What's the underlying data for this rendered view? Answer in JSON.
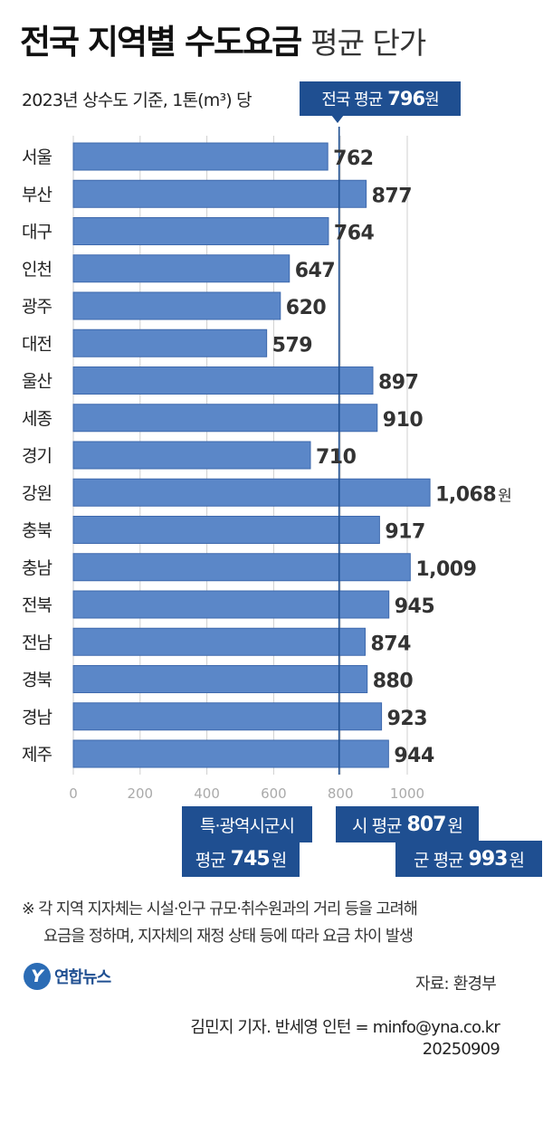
{
  "header": {
    "title_bold": "전국 지역별 수도요금",
    "title_light": "평균 단가",
    "subtitle": "2023년 상수도 기준, 1톤(m³) 당"
  },
  "national_average": {
    "label": "전국 평균",
    "value": "796",
    "unit": "원",
    "numeric": 796
  },
  "chart_data": {
    "type": "bar",
    "orientation": "horizontal",
    "categories": [
      "서울",
      "부산",
      "대구",
      "인천",
      "광주",
      "대전",
      "울산",
      "세종",
      "경기",
      "강원",
      "충북",
      "충남",
      "전북",
      "전남",
      "경북",
      "경남",
      "제주"
    ],
    "values": [
      762,
      877,
      764,
      647,
      620,
      579,
      897,
      910,
      710,
      1068,
      917,
      1009,
      945,
      874,
      880,
      923,
      944
    ],
    "value_labels": [
      "762",
      "877",
      "764",
      "647",
      "620",
      "579",
      "897",
      "910",
      "710",
      "1,068",
      "917",
      "1,009",
      "945",
      "874",
      "880",
      "923",
      "944"
    ],
    "value_unit": "원",
    "unit_shown_on_index": 9,
    "xlim": [
      0,
      1068
    ],
    "x_ticks": [
      0,
      200,
      400,
      600,
      800,
      1000
    ],
    "x_tick_labels": [
      "0",
      "200",
      "400",
      "600",
      "800",
      "1000"
    ],
    "reference_line": 796,
    "grid": true,
    "bar_color": "#5b87c8",
    "bar_border_color": "#3e69ad",
    "reference_line_color": "#1f4f91"
  },
  "callouts": {
    "metro_line1": "특·광역시군시",
    "metro_line2_label": "평균",
    "metro_value": "745",
    "city_label": "시 평균",
    "city_value": "807",
    "county_label": "군 평균",
    "county_value": "993",
    "unit": "원"
  },
  "footnote": {
    "line1": "※ 각 지역 지자체는 시설·인구 규모·취수원과의 거리 등을 고려해",
    "line2": "요금을 정하며, 지자체의 재정 상태 등에 따라 요금 차이 발생"
  },
  "footer": {
    "logo_mark": "Y",
    "logo_text": "연합뉴스",
    "source": "자료: 환경부",
    "credit": "김민지 기자. 반세영 인턴 = minfo@yna.co.kr",
    "date": "20250909"
  },
  "colors": {
    "accent": "#1f4f91",
    "bar": "#5b87c8"
  }
}
